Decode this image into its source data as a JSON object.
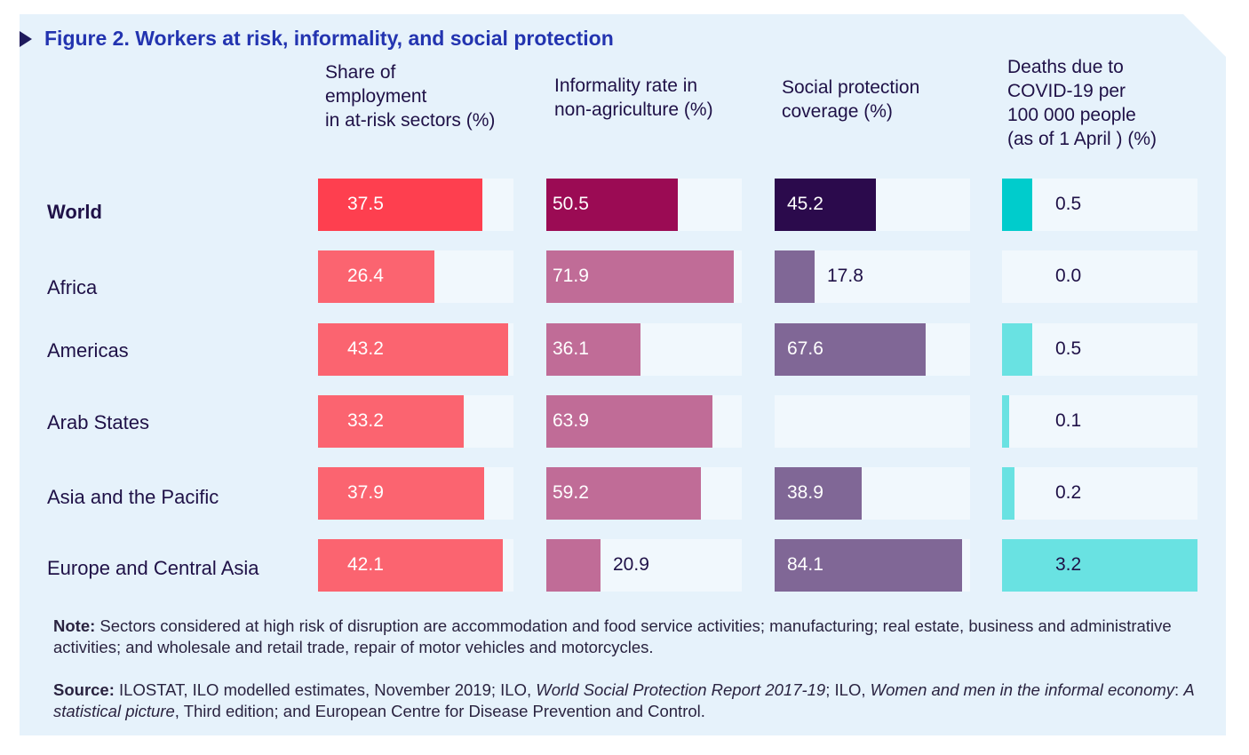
{
  "title": "Figure 2. Workers at risk, informality, and social protection",
  "note": {
    "label": "Note:",
    "text": "Sectors considered at high risk of disruption are accommodation and food service activities; manufacturing; real estate, business and administrative activities; and wholesale and retail trade, repair of motor vehicles and motorcycles."
  },
  "source": {
    "label": "Source:",
    "part1": "ILOSTAT, ILO modelled estimates, November 2019; ILO,",
    "ital1": "World Social Protection Report 2017-19",
    "part2": "; ILO,",
    "ital2": "Women and men in the informal economy",
    "part3": ":",
    "ital3": "A statistical picture",
    "part4": ", Third edition; and European Centre for Disease Prevention and Control."
  },
  "chart_data": {
    "type": "bar",
    "categories": [
      "World",
      "Africa",
      "Americas",
      "Arab States",
      "Asia and the Pacific",
      "Europe and Central Asia"
    ],
    "series": [
      {
        "name": "Share of\nemployment\nin at-risk sectors (%)",
        "values": [
          37.5,
          26.4,
          43.2,
          33.2,
          37.9,
          42.1
        ],
        "labels": [
          "37.5",
          "26.4",
          "43.2",
          "33.2",
          "37.9",
          "42.1"
        ],
        "max": 44.5,
        "color": "#fb6470",
        "highlight": "#fe3f4f"
      },
      {
        "name": "Informality rate in\nnon-agriculture (%)",
        "values": [
          50.5,
          71.9,
          36.1,
          63.9,
          59.2,
          20.9
        ],
        "labels": [
          "50.5",
          "71.9",
          "36.1",
          "63.9",
          "59.2",
          "20.9"
        ],
        "max": 75.0,
        "color": "#c06c97",
        "highlight": "#9b0b54"
      },
      {
        "name": "Social protection\ncoverage (%)",
        "values": [
          45.2,
          17.8,
          67.6,
          null,
          38.9,
          84.1
        ],
        "labels": [
          "45.2",
          "17.8",
          "67.6",
          "",
          "38.9",
          "84.1"
        ],
        "max": 87.5,
        "color": "#806796",
        "highlight": "#2b0a4c"
      },
      {
        "name": "Deaths due to\nCOVID-19 per\n100 000 people\n(as of 1 April ) (%)",
        "values": [
          0.5,
          0.0,
          0.5,
          0.1,
          0.2,
          3.2
        ],
        "labels": [
          "0.5",
          "0.0",
          "0.5",
          "0.1",
          "0.2",
          "3.2"
        ],
        "max": 3.2,
        "color": "#69e2e2",
        "highlight": "#00cccc"
      }
    ]
  }
}
